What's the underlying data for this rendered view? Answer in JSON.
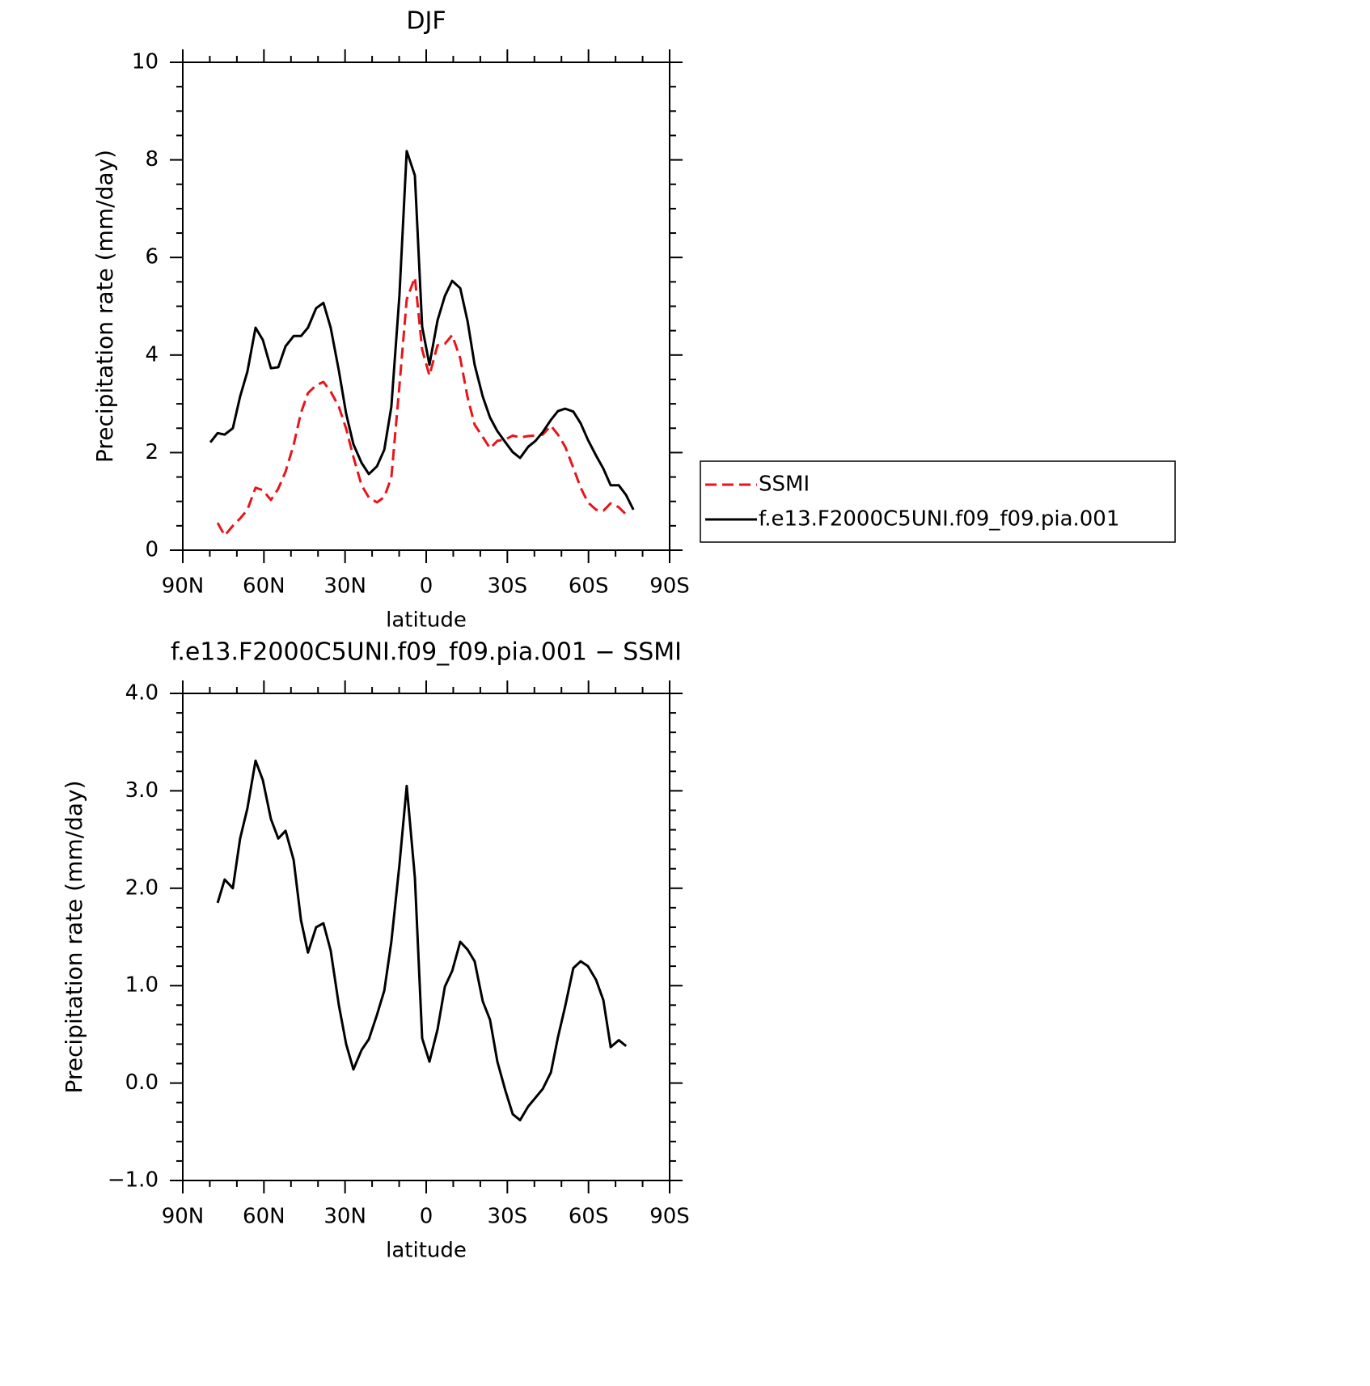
{
  "chart_data": [
    {
      "type": "line",
      "title": "DJF",
      "xlabel": "latitude",
      "ylabel": "Precipitation rate (mm/day)",
      "x": [
        79.8,
        77.1,
        74.5,
        71.5,
        68.8,
        66.1,
        63.1,
        60.4,
        57.4,
        54.7,
        52.0,
        49.0,
        46.3,
        43.7,
        40.7,
        38.0,
        35.3,
        32.3,
        29.6,
        26.9,
        23.9,
        21.2,
        18.2,
        15.5,
        12.9,
        9.9,
        7.2,
        4.2,
        1.5,
        -1.2,
        -4.2,
        -6.9,
        -9.6,
        -12.6,
        -15.3,
        -17.9,
        -20.9,
        -23.6,
        -26.3,
        -29.3,
        -32.0,
        -34.7,
        -37.7,
        -40.4,
        -43.1,
        -46.1,
        -48.7,
        -51.4,
        -54.4,
        -57.1,
        -59.8,
        -62.8,
        -65.5,
        -68.2,
        -71.2,
        -73.9,
        -76.6
      ],
      "series": [
        {
          "name": "SSMI",
          "color": "#e8141b",
          "linestyle": "dashed",
          "values": [
            null,
            0.56,
            0.3,
            0.5,
            0.65,
            0.83,
            1.28,
            1.23,
            1.03,
            1.26,
            1.61,
            2.16,
            2.82,
            3.22,
            3.38,
            3.45,
            3.25,
            2.94,
            2.49,
            1.91,
            1.33,
            1.08,
            0.98,
            1.09,
            1.49,
            3.37,
            5.14,
            5.59,
            4.11,
            3.58,
            4.2,
            4.23,
            4.41,
            3.93,
            3.13,
            2.57,
            2.32,
            2.09,
            2.24,
            2.27,
            2.35,
            2.31,
            2.34,
            2.35,
            2.37,
            2.55,
            2.37,
            2.12,
            1.69,
            1.28,
            0.98,
            0.83,
            0.81,
            0.96,
            0.88,
            0.73,
            null
          ]
        },
        {
          "name": "f.e13.F2000C5UNI.f09_f09.pia.001",
          "color": "#000000",
          "linestyle": "solid",
          "values": [
            2.21,
            2.4,
            2.37,
            2.5,
            3.15,
            3.66,
            4.56,
            4.31,
            3.73,
            3.75,
            4.18,
            4.39,
            4.39,
            4.56,
            4.96,
            5.07,
            4.56,
            3.68,
            2.8,
            2.17,
            1.79,
            1.56,
            1.72,
            2.06,
            2.94,
            5.22,
            8.18,
            7.68,
            4.58,
            3.8,
            4.71,
            5.21,
            5.52,
            5.37,
            4.69,
            3.8,
            3.15,
            2.72,
            2.44,
            2.21,
            2.01,
            1.89,
            2.12,
            2.24,
            2.42,
            2.67,
            2.85,
            2.9,
            2.84,
            2.6,
            2.26,
            1.94,
            1.67,
            1.33,
            1.33,
            1.13,
            0.83
          ]
        }
      ],
      "xlim": [
        90,
        -90
      ],
      "xticks": [
        {
          "value": 90,
          "label": "90N"
        },
        {
          "value": 60,
          "label": "60N"
        },
        {
          "value": 30,
          "label": "30N"
        },
        0,
        {
          "value": -30,
          "label": "30S"
        },
        {
          "value": -60,
          "label": "60S"
        },
        {
          "value": -90,
          "label": "90S"
        }
      ],
      "ylim": [
        0,
        10
      ],
      "yticks": [
        0,
        2,
        4,
        6,
        8,
        10
      ],
      "legend": "right"
    },
    {
      "type": "line",
      "title": "f.e13.F2000C5UNI.f09_f09.pia.001 − SSMI",
      "xlabel": "latitude",
      "ylabel": "Precipitation rate (mm/day)",
      "x": [
        77.1,
        74.5,
        71.5,
        68.8,
        66.1,
        63.1,
        60.4,
        57.4,
        54.7,
        52.0,
        49.0,
        46.3,
        43.7,
        40.7,
        38.0,
        35.3,
        32.3,
        29.6,
        26.9,
        23.9,
        21.2,
        18.2,
        15.5,
        12.9,
        9.9,
        7.2,
        4.2,
        1.5,
        -1.2,
        -4.2,
        -6.9,
        -9.6,
        -12.6,
        -15.3,
        -17.9,
        -20.9,
        -23.6,
        -26.3,
        -29.3,
        -32.0,
        -34.7,
        -37.7,
        -40.4,
        -43.1,
        -46.1,
        -48.7,
        -51.4,
        -54.4,
        -57.1,
        -59.8,
        -62.8,
        -65.5,
        -68.2,
        -71.2,
        -73.9
      ],
      "series": [
        {
          "color": "#000000",
          "linestyle": "solid",
          "values": [
            1.85,
            2.09,
            2.0,
            2.51,
            2.82,
            3.31,
            3.11,
            2.71,
            2.51,
            2.59,
            2.29,
            1.67,
            1.34,
            1.6,
            1.64,
            1.36,
            0.8,
            0.4,
            0.14,
            0.34,
            0.45,
            0.7,
            0.95,
            1.45,
            2.24,
            3.05,
            2.11,
            0.46,
            0.22,
            0.55,
            0.99,
            1.15,
            1.45,
            1.37,
            1.25,
            0.84,
            0.65,
            0.22,
            -0.08,
            -0.32,
            -0.38,
            -0.24,
            -0.15,
            -0.06,
            0.11,
            0.47,
            0.79,
            1.18,
            1.25,
            1.2,
            1.06,
            0.85,
            0.37,
            0.44,
            0.38
          ]
        }
      ],
      "xlim": [
        90,
        -90
      ],
      "xticks": [
        {
          "value": 90,
          "label": "90N"
        },
        {
          "value": 60,
          "label": "60N"
        },
        {
          "value": 30,
          "label": "30N"
        },
        0,
        {
          "value": -30,
          "label": "30S"
        },
        {
          "value": -60,
          "label": "60S"
        },
        {
          "value": -90,
          "label": "90S"
        }
      ],
      "ylim": [
        -1,
        4
      ],
      "yticks": [
        {
          "value": -1,
          "label": "−1.0"
        },
        {
          "value": 0,
          "label": "0.0"
        },
        {
          "value": 1,
          "label": "1.0"
        },
        {
          "value": 2,
          "label": "2.0"
        },
        {
          "value": 3,
          "label": "3.0"
        },
        {
          "value": 4,
          "label": "4.0"
        }
      ]
    }
  ]
}
